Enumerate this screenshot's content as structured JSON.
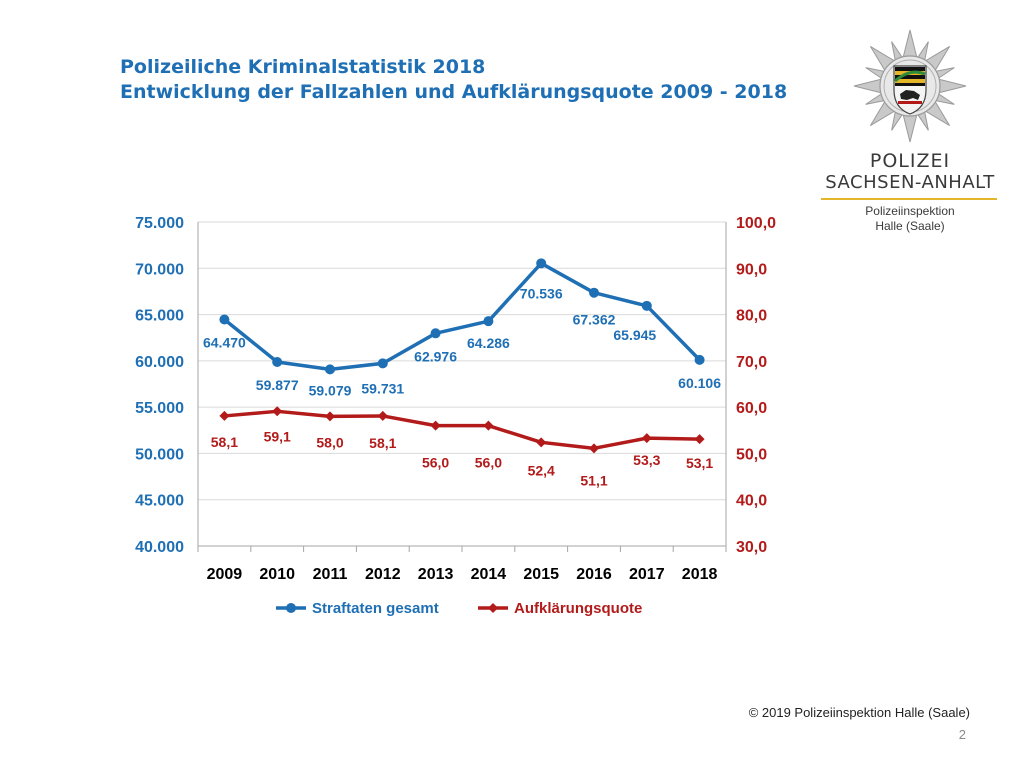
{
  "slide": {
    "title_line1": "Polizeiliche Kriminalstatistik 2018",
    "title_line2": "Entwicklung der Fallzahlen und Aufklärungsquote  2009 - 2018",
    "copyright": "© 2019 Polizeiinspektion Halle (Saale)",
    "page_number": "2"
  },
  "logo": {
    "line1": "POLIZEI",
    "line2": "SACHSEN-ANHALT",
    "unit_line1": "Polizeiinspektion",
    "unit_line2": "Halle (Saale)"
  },
  "colors": {
    "title": "#1f6fb5",
    "series_blue": "#1f6fb5",
    "series_red": "#b31b1b",
    "grid": "#d9d9d9",
    "logo_gold": "#e3b528"
  },
  "chart_data": {
    "type": "line",
    "title": "",
    "xlabel": "",
    "ylabel": "",
    "x": [
      "2009",
      "2010",
      "2011",
      "2012",
      "2013",
      "2014",
      "2015",
      "2016",
      "2017",
      "2018"
    ],
    "grid": true,
    "legend_position": "bottom",
    "series": [
      {
        "name": "Straftaten gesamt",
        "axis": "left",
        "color": "#1f6fb5",
        "values": [
          64470,
          59877,
          59079,
          59731,
          62976,
          64286,
          70536,
          67362,
          65945,
          60106
        ],
        "labels": [
          "64.470",
          "59.877",
          "59.079",
          "59.731",
          "62.976",
          "64.286",
          "70.536",
          "67.362",
          "65.945",
          "60.106"
        ]
      },
      {
        "name": "Aufklärungsquote",
        "axis": "right",
        "color": "#b31b1b",
        "values": [
          58.1,
          59.1,
          58.0,
          58.1,
          56.0,
          56.0,
          52.4,
          51.1,
          53.3,
          53.1
        ],
        "labels": [
          "58,1",
          "59,1",
          "58,0",
          "58,1",
          "56,0",
          "56,0",
          "52,4",
          "51,1",
          "53,3",
          "53,1"
        ]
      }
    ],
    "y_left": {
      "min": 40000,
      "max": 75000,
      "ticks": [
        40000,
        45000,
        50000,
        55000,
        60000,
        65000,
        70000,
        75000
      ],
      "tick_labels": [
        "40.000",
        "45.000",
        "50.000",
        "55.000",
        "60.000",
        "65.000",
        "70.000",
        "75.000"
      ]
    },
    "y_right": {
      "min": 30,
      "max": 100,
      "ticks": [
        30,
        40,
        50,
        60,
        70,
        80,
        90,
        100
      ],
      "tick_labels": [
        "30,0",
        "40,0",
        "50,0",
        "60,0",
        "70,0",
        "80,0",
        "90,0",
        "100,0"
      ]
    }
  }
}
